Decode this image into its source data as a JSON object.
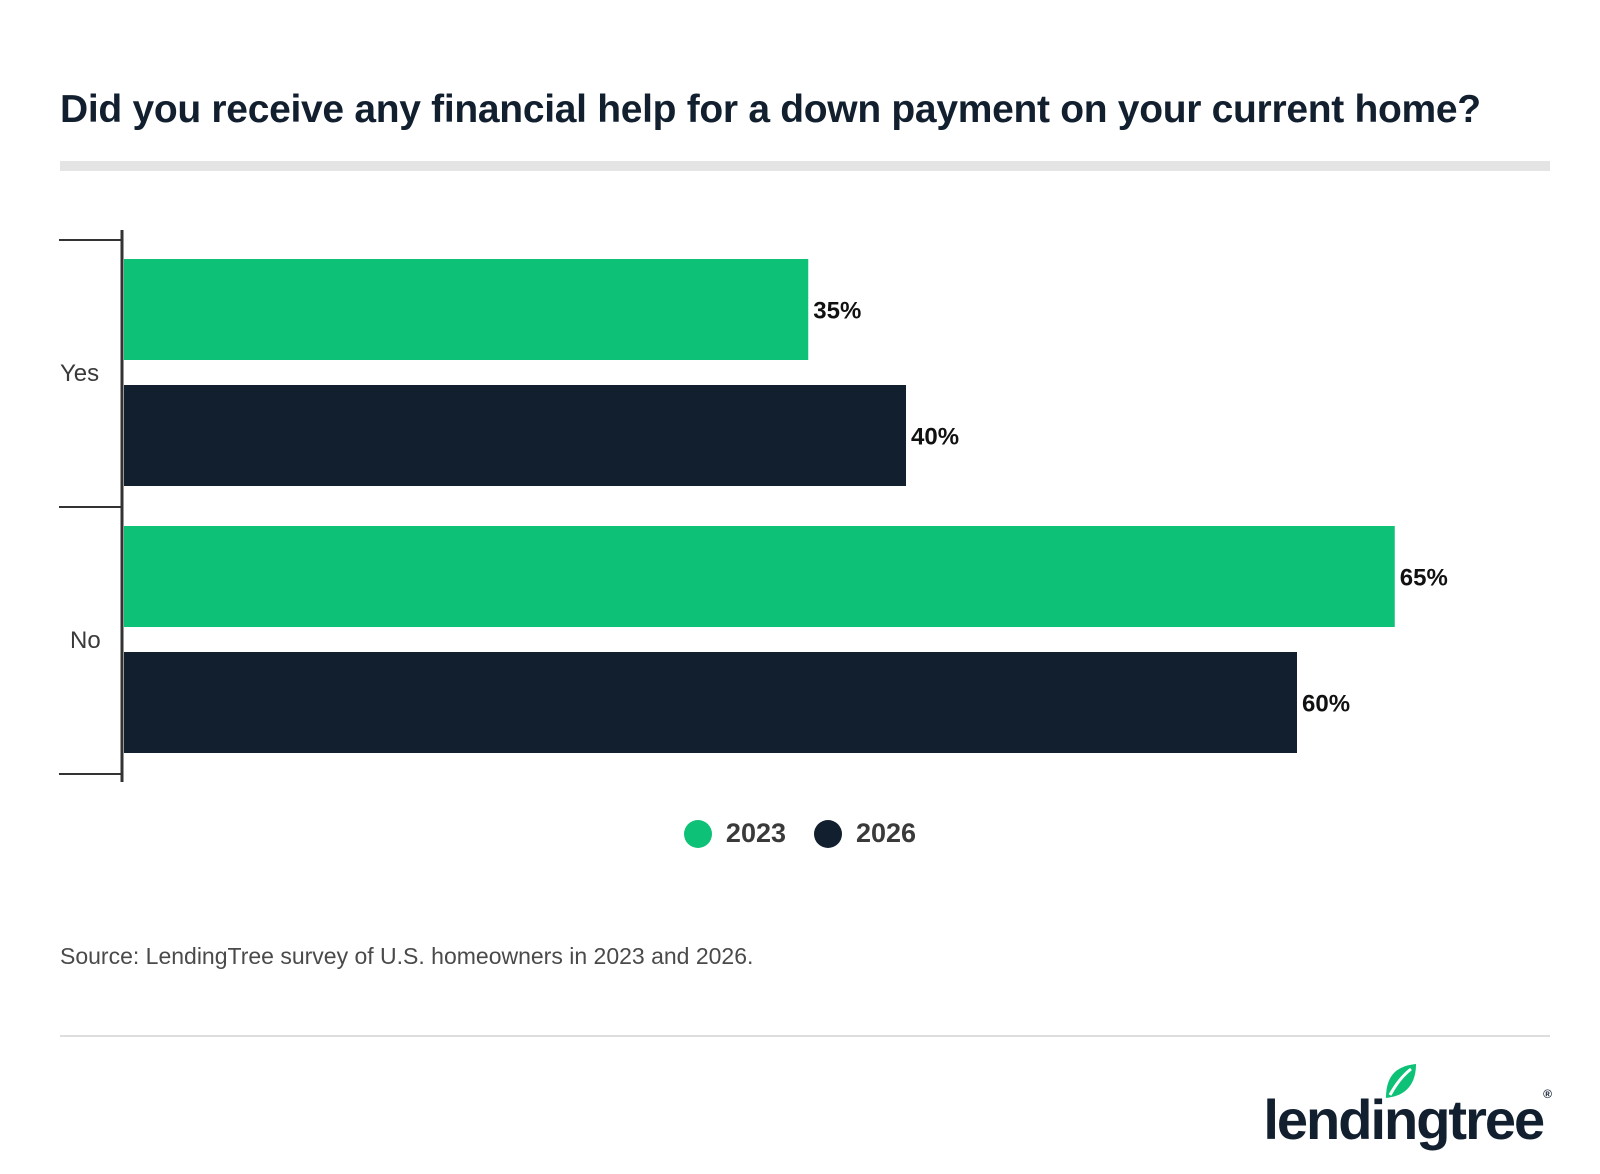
{
  "title": "Did you receive any financial help for a down payment on your current home?",
  "source": "Source: LendingTree survey of U.S. homeowners in 2023 and 2026.",
  "logo": {
    "text": "lendingtree",
    "mark": "®"
  },
  "colors": {
    "green": "#0dc176",
    "navy": "#121f2f"
  },
  "chart_data": {
    "type": "bar",
    "orientation": "horizontal",
    "title": "Did you receive any financial help for a down payment on your current home?",
    "categories": [
      "Yes",
      "No"
    ],
    "series": [
      {
        "name": "2023",
        "values": [
          35,
          65
        ],
        "labels": [
          "35%",
          "65%"
        ],
        "color": "#0dc176"
      },
      {
        "name": "2026",
        "values": [
          40,
          60
        ],
        "labels": [
          "40%",
          "60%"
        ],
        "color": "#121f2f"
      }
    ],
    "xlim": [
      0,
      65
    ],
    "grid": false,
    "legend": "bottom-center"
  }
}
